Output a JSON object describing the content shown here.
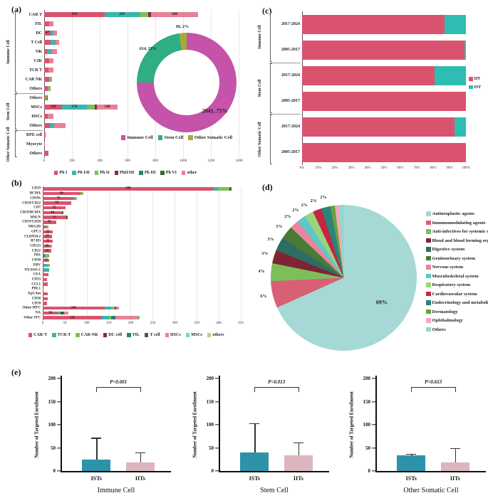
{
  "panels": {
    "a": "(a)",
    "b": "(b)",
    "c": "(c)",
    "d": "(d)",
    "e": "(e)"
  },
  "chart_data": [
    {
      "id": "a-bars",
      "type": "bar",
      "subtype": "stacked-horizontal",
      "xlabel": "",
      "ylabel": "",
      "xticks": [
        0,
        200,
        400,
        600,
        800,
        1000,
        1200,
        1400
      ],
      "xmax": 1475,
      "series": [
        {
          "name": "Ph I",
          "color": "#d9536f"
        },
        {
          "name": "Ph I/II",
          "color": "#36b6b0"
        },
        {
          "name": "Ph II",
          "color": "#7cc05a"
        },
        {
          "name": "PhII/III",
          "color": "#7e2f40"
        },
        {
          "name": "Ph III",
          "color": "#2e7d74"
        },
        {
          "name": "Ph VI",
          "color": "#41682e"
        },
        {
          "name": "other",
          "color": "#e98196"
        }
      ],
      "groups": [
        "Immune Cell",
        "Stem Cell",
        "Other Somatic Cell"
      ],
      "rows": [
        {
          "g": 0,
          "label": "CAR T",
          "seg": [
            [
              0,
              437,
              "437"
            ],
            [
              1,
              247,
              "247"
            ],
            [
              2,
              65,
              ""
            ],
            [
              3,
              18,
              ""
            ],
            [
              6,
              340,
              "340"
            ]
          ]
        },
        {
          "g": 0,
          "label": "TIL",
          "seg": [
            [
              0,
              34,
              "34"
            ],
            [
              6,
              32,
              "32"
            ]
          ]
        },
        {
          "g": 0,
          "label": "DC",
          "seg": [
            [
              0,
              47,
              "47"
            ],
            [
              1,
              18,
              "18"
            ],
            [
              6,
              26,
              "26"
            ]
          ]
        },
        {
          "g": 0,
          "label": "T Cell",
          "seg": [
            [
              0,
              46,
              "46"
            ],
            [
              1,
              37,
              "37"
            ],
            [
              6,
              26,
              "26"
            ]
          ]
        },
        {
          "g": 0,
          "label": "NK",
          "seg": [
            [
              0,
              23,
              "23"
            ],
            [
              1,
              31,
              "31"
            ],
            [
              6,
              36,
              "36"
            ]
          ]
        },
        {
          "g": 0,
          "label": "CIK",
          "seg": [
            [
              0,
              35,
              "35"
            ],
            [
              6,
              33,
              "33"
            ]
          ]
        },
        {
          "g": 0,
          "label": "TCR T",
          "seg": [
            [
              0,
              33,
              "33"
            ],
            [
              6,
              32,
              "32"
            ]
          ]
        },
        {
          "g": 0,
          "label": "CAR NK",
          "seg": [
            [
              0,
              37,
              "37"
            ],
            [
              2,
              18,
              "18"
            ]
          ]
        },
        {
          "g": 0,
          "label": "Others",
          "seg": [
            [
              0,
              25,
              "25"
            ],
            [
              2,
              9,
              ""
            ],
            [
              6,
              14,
              ""
            ]
          ]
        },
        {
          "g": 1,
          "label": "Others",
          "seg": [
            [
              0,
              11,
              ""
            ],
            [
              2,
              8,
              ""
            ],
            [
              5,
              6,
              ""
            ]
          ]
        },
        {
          "g": 1,
          "label": "MSCs",
          "seg": [
            [
              0,
              129,
              "129"
            ],
            [
              1,
              176,
              "176"
            ],
            [
              2,
              60,
              ""
            ],
            [
              3,
              15,
              ""
            ],
            [
              6,
              148,
              "148"
            ]
          ]
        },
        {
          "g": 1,
          "label": "HSCs",
          "seg": [
            [
              0,
              27,
              "27"
            ],
            [
              6,
              41,
              "41"
            ]
          ]
        },
        {
          "g": 1,
          "label": "Others",
          "seg": [
            [
              0,
              40,
              ""
            ],
            [
              1,
              30,
              ""
            ],
            [
              6,
              85,
              ""
            ]
          ]
        },
        {
          "g": 2,
          "label": "RPE cell",
          "seg": [
            [
              0,
              9,
              "9"
            ]
          ]
        },
        {
          "g": 2,
          "label": "Myocyte",
          "seg": [
            [
              0,
              3,
              "3"
            ]
          ]
        },
        {
          "g": 2,
          "label": "Others",
          "seg": [
            [
              0,
              32,
              "32"
            ]
          ]
        }
      ]
    },
    {
      "id": "a-donut",
      "type": "pie",
      "subtype": "donut",
      "legend_position": "bottom",
      "slices": [
        {
          "name": "Immune Cell",
          "value": 2041,
          "label": "2041, 75%",
          "color": "#c553a9"
        },
        {
          "name": "Stem Cell",
          "value": 614,
          "label": "614, 23%",
          "color": "#2fae84"
        },
        {
          "name": "Other Somatic Cell",
          "value": 66,
          "label": "66, 2%",
          "color": "#a8aa35"
        }
      ]
    },
    {
      "id": "b-bars",
      "type": "bar",
      "subtype": "stacked-horizontal",
      "xlabel": "",
      "ylabel": "",
      "xticks": [
        0,
        50,
        100,
        150,
        200,
        250,
        300,
        350,
        400,
        450
      ],
      "xmax": 460,
      "series": [
        {
          "name": "CAR-T",
          "color": "#d9536f"
        },
        {
          "name": "TCR-T",
          "color": "#36b6b0"
        },
        {
          "name": "CAR-NK",
          "color": "#7cc05a"
        },
        {
          "name": "DC cell",
          "color": "#7e2f40"
        },
        {
          "name": "TIL",
          "color": "#2e7d74"
        },
        {
          "name": "T cell",
          "color": "#41682e"
        },
        {
          "name": "HSCs",
          "color": "#e98196"
        },
        {
          "name": "MSCs",
          "color": "#7fd4cf"
        },
        {
          "name": "others",
          "color": "#a9d98a"
        }
      ],
      "rows": [
        {
          "label": "CD19",
          "seg": [
            [
              0,
              388,
              "388"
            ],
            [
              1,
              10,
              ""
            ],
            [
              2,
              26,
              ""
            ],
            [
              5,
              6,
              ""
            ]
          ]
        },
        {
          "label": "BCMA",
          "seg": [
            [
              0,
              86,
              "86"
            ],
            [
              2,
              7,
              ""
            ]
          ]
        },
        {
          "label": "CD19x",
          "seg": [
            [
              0,
              72,
              "72"
            ],
            [
              2,
              6,
              ""
            ]
          ]
        },
        {
          "label": "CD19/CD22",
          "seg": [
            [
              0,
              64,
              "64"
            ]
          ]
        },
        {
          "label": "CD7",
          "seg": [
            [
              0,
              52,
              "52"
            ]
          ]
        },
        {
          "label": "CD19/BCMA",
          "seg": [
            [
              0,
              44,
              "44"
            ],
            [
              5,
              3,
              ""
            ]
          ]
        },
        {
          "label": "MSLN",
          "seg": [
            [
              0,
              53,
              "53"
            ],
            [
              5,
              3,
              ""
            ]
          ]
        },
        {
          "label": "CD19/CD20",
          "seg": [
            [
              0,
              30,
              "30"
            ]
          ]
        },
        {
          "label": "NKG2D",
          "seg": [
            [
              0,
              8,
              "8"
            ],
            [
              2,
              5,
              ""
            ]
          ]
        },
        {
          "label": "GPC3",
          "seg": [
            [
              0,
              23,
              "23"
            ]
          ]
        },
        {
          "label": "CLDN18.2",
          "seg": [
            [
              0,
              21,
              "21"
            ]
          ]
        },
        {
          "label": "B7-H3",
          "seg": [
            [
              0,
              23,
              "23"
            ]
          ]
        },
        {
          "label": "CD123",
          "seg": [
            [
              0,
              18,
              "18"
            ],
            [
              2,
              3,
              ""
            ]
          ]
        },
        {
          "label": "CD22",
          "seg": [
            [
              0,
              19,
              "19"
            ]
          ]
        },
        {
          "label": "PD1",
          "seg": [
            [
              0,
              2,
              "2"
            ],
            [
              4,
              3,
              ""
            ],
            [
              2,
              10,
              ""
            ]
          ]
        },
        {
          "label": "CD30",
          "seg": [
            [
              0,
              15,
              "15"
            ]
          ]
        },
        {
          "label": "EBV",
          "seg": [
            [
              0,
              4,
              "4"
            ],
            [
              1,
              8,
              ""
            ],
            [
              2,
              4,
              ""
            ]
          ]
        },
        {
          "label": "NY-ESO-1",
          "seg": [
            [
              0,
              3,
              ""
            ],
            [
              1,
              12,
              ""
            ]
          ]
        },
        {
          "label": "CEA",
          "seg": [
            [
              0,
              13,
              "13"
            ]
          ]
        },
        {
          "label": "CD33",
          "seg": [
            [
              0,
              10,
              "10"
            ]
          ]
        },
        {
          "label": "CLL1",
          "seg": [
            [
              0,
              11,
              "11"
            ]
          ]
        },
        {
          "label": "PDL1",
          "seg": [
            [
              0,
              2,
              "2"
            ]
          ]
        },
        {
          "label": "EpCAm",
          "seg": [
            [
              0,
              11,
              "11"
            ]
          ]
        },
        {
          "label": "CD38",
          "seg": [
            [
              0,
              11,
              "11"
            ]
          ]
        },
        {
          "label": "CD70",
          "seg": [
            [
              0,
              10,
              "10"
            ]
          ]
        },
        {
          "label": "Other MTC",
          "seg": [
            [
              0,
              141,
              "141"
            ],
            [
              1,
              15,
              ""
            ],
            [
              2,
              7,
              ""
            ],
            [
              5,
              4,
              ""
            ],
            [
              6,
              6,
              ""
            ]
          ]
        },
        {
          "label": "NA",
          "seg": [
            [
              0,
              34,
              "34"
            ],
            [
              1,
              6,
              ""
            ],
            [
              3,
              4,
              ""
            ],
            [
              5,
              4,
              ""
            ],
            [
              6,
              10,
              ""
            ]
          ]
        },
        {
          "label": "Other STC",
          "seg": [
            [
              0,
              135,
              "135"
            ],
            [
              1,
              15,
              ""
            ],
            [
              2,
              6,
              ""
            ],
            [
              4,
              10,
              ""
            ],
            [
              6,
              50,
              ""
            ],
            [
              2,
              5,
              ""
            ]
          ]
        }
      ]
    },
    {
      "id": "c-bars",
      "type": "bar",
      "subtype": "stacked-horizontal-percent",
      "xticks": [
        "0%",
        "10%",
        "20%",
        "30%",
        "40%",
        "50%",
        "60%",
        "70%",
        "80%",
        "90%",
        "100%"
      ],
      "xmax": 100,
      "series": [
        {
          "name": "IIT",
          "color": "#d9536f"
        },
        {
          "name": "IST",
          "color": "#2fbdb3"
        }
      ],
      "groups": [
        "Immune Cell",
        "Stem Cell",
        "Other Somatic Cell"
      ],
      "rows": [
        {
          "g": 0,
          "label": "2017-2024",
          "values": [
            87,
            13
          ]
        },
        {
          "g": 0,
          "label": "2005-2017",
          "values": [
            99,
            1
          ]
        },
        {
          "g": 1,
          "label": "2017-2024",
          "values": [
            81,
            19
          ]
        },
        {
          "g": 1,
          "label": "2005-2017",
          "values": [
            100,
            0
          ]
        },
        {
          "g": 2,
          "label": "2017-2024",
          "values": [
            93,
            7
          ]
        },
        {
          "g": 2,
          "label": "2005-2017",
          "values": [
            100,
            0
          ]
        }
      ]
    },
    {
      "id": "d-pie",
      "type": "pie",
      "subtype": "pie",
      "legend_position": "right",
      "slices": [
        {
          "name": "Antineoplastic agents",
          "value": 69,
          "label": "69%",
          "color": "#a6d9d5"
        },
        {
          "name": "Immunomodulating agents",
          "value": 6,
          "label": "6%",
          "color": "#d95f75"
        },
        {
          "name": "Anti-infectives for systemic use",
          "value": 4,
          "label": "4%",
          "color": "#7cbf5a"
        },
        {
          "name": "Blood and blood forming organs",
          "value": 3,
          "label": "3%",
          "color": "#7e2435"
        },
        {
          "name": "Digestive system",
          "value": 3,
          "label": "3%",
          "color": "#2c6e62"
        },
        {
          "name": "Genitourinary system",
          "value": 3,
          "label": "3%",
          "color": "#4a7a34"
        },
        {
          "name": "Nervous system",
          "value": 2,
          "label": "2%",
          "color": "#e786a0"
        },
        {
          "name": "Musculoskeletal system",
          "value": 2,
          "label": "2%",
          "color": "#5fc8c2"
        },
        {
          "name": "Respiratory system",
          "value": 2,
          "label": "2%",
          "color": "#9ad47e"
        },
        {
          "name": "Cardiovascular system",
          "value": 2,
          "label": "2%",
          "color": "#c22743"
        },
        {
          "name": "Endocrinology and metabolism",
          "value": 2,
          "label": "2%",
          "color": "#27857c"
        },
        {
          "name": "Dermatology",
          "value": 1,
          "label": "1%",
          "color": "#68a03f"
        },
        {
          "name": "Ophthalmology",
          "value": 1,
          "label": "1%",
          "color": "#f0a9bb"
        },
        {
          "name": "Others",
          "value": 1,
          "label": "1%",
          "color": "#8fd8d2"
        }
      ]
    },
    {
      "id": "e-immune",
      "type": "bar",
      "subtype": "vertical-error",
      "title": "Immune Cell",
      "ylabel": "Number of Targeted Enrollment",
      "ylim": [
        0,
        200
      ],
      "yticks": [
        0,
        50,
        100,
        150,
        200
      ],
      "p_label": "P<0.001",
      "bracket_y": 182,
      "bars": [
        {
          "label": "ISTs",
          "value": 24,
          "error_top": 72,
          "color": "#2e93a8"
        },
        {
          "label": "IITs",
          "value": 18,
          "error_top": 40,
          "color": "#dcb6be"
        }
      ]
    },
    {
      "id": "e-stem",
      "type": "bar",
      "subtype": "vertical-error",
      "title": "Stem Cell",
      "ylabel": "Number of Targeted Enrollment",
      "ylim": [
        0,
        200
      ],
      "yticks": [
        0,
        50,
        100,
        150,
        200
      ],
      "p_label": "P=0.013",
      "bracket_y": 182,
      "bars": [
        {
          "label": "ISTs",
          "value": 40,
          "error_top": 103,
          "color": "#2e93a8"
        },
        {
          "label": "IITs",
          "value": 34,
          "error_top": 62,
          "color": "#dcb6be"
        }
      ]
    },
    {
      "id": "e-osc",
      "type": "bar",
      "subtype": "vertical-error",
      "title": "Other Somatic Cell",
      "ylabel": "Number of Targeted Enrollment",
      "ylim": [
        0,
        200
      ],
      "yticks": [
        0,
        50,
        100,
        150,
        200
      ],
      "p_label": "P=0.653",
      "bracket_y": 182,
      "bars": [
        {
          "label": "ISTs",
          "value": 34,
          "error_top": 37,
          "color": "#2e93a8"
        },
        {
          "label": "IITs",
          "value": 18,
          "error_top": 50,
          "color": "#dcb6be"
        }
      ]
    }
  ]
}
